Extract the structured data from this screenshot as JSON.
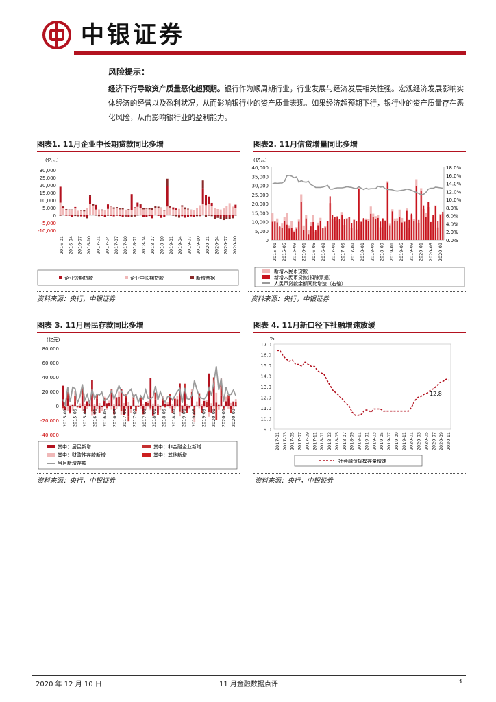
{
  "header": {
    "brand": "中银证券"
  },
  "risk": {
    "title": "风险提示：",
    "lead": "经济下行导致资产质量恶化超预期。",
    "body": "银行作为顺周期行业，行业发展与经济发展相关性强。宏观经济发展影响实体经济的经营以及盈利状况，从而影响银行业的资产质量表现。如果经济超预期下行，银行业的资产质量存在恶化风险，从而影响银行业的盈利能力。"
  },
  "figures": {
    "fig1": {
      "title": "图表1. 11月企业中长期贷款同比多增",
      "source": "资料来源：央行，中银证券"
    },
    "fig2": {
      "title": "图表2. 11月信贷增量同比多增",
      "source": "资料来源：央行，中银证券"
    },
    "fig3": {
      "title": "图表 3. 11月居民存款同比多增",
      "source": "资料来源：央行，中银证券"
    },
    "fig4": {
      "title": "图表 4. 11月新口径下社融增速放缓",
      "source": "资料来源：央行，中银证券"
    }
  },
  "chart_data": [
    {
      "id": "fig1",
      "type": "bar",
      "unit": "(亿元)",
      "ylim": [
        -10000,
        30000
      ],
      "yticks": [
        "30,000",
        "25,000",
        "20,000",
        "15,000",
        "10,000",
        "5,000",
        "0",
        "-5,000",
        "-10,000"
      ],
      "xticks": [
        "2016-01",
        "2016-04",
        "2016-07",
        "2016-10",
        "2017-01",
        "2017-04",
        "2017-07",
        "2017-10",
        "2018-01",
        "2018-04",
        "2018-07",
        "2018-10",
        "2019-01",
        "2019-04",
        "2019-07",
        "2019-10",
        "2020-01",
        "2020-04",
        "2020-07",
        "2020-10"
      ],
      "series": [
        {
          "name": "企业短期贷款",
          "color": "#b3121f"
        },
        {
          "name": "企业中长期贷款",
          "color": "#f0b8b8"
        },
        {
          "name": "新增票据",
          "color": "#8a2a2a"
        }
      ],
      "values_mid": [
        8400,
        5000,
        3700,
        3200,
        3300,
        4500,
        3000,
        3000,
        2600,
        4800,
        7500,
        6400,
        3800,
        3500,
        3100,
        3300,
        4200,
        5800,
        4300,
        4600,
        3900,
        3900,
        3700,
        3500,
        3600,
        4700,
        5600,
        5000,
        3900,
        4300,
        3900,
        3600,
        4800,
        4900,
        4600,
        3000,
        5800,
        4600,
        3900,
        3400,
        4200,
        5700,
        4000,
        3900,
        3600,
        3300,
        4800,
        6600,
        7700,
        6700,
        7600,
        5900,
        4700,
        4100,
        3800,
        4500,
        6000,
        8000,
        5700,
        4800
      ],
      "values_short": [
        10500,
        500,
        -300,
        -300,
        -1200,
        1000,
        -300,
        -700,
        -800,
        -1000,
        5200,
        100,
        3100,
        200,
        -400,
        -1000,
        3000,
        -400,
        -700,
        -300,
        -500,
        -1200,
        -300,
        -1100,
        10400,
        600,
        2800,
        2000,
        -1000,
        -1200,
        -500,
        -2000,
        200,
        -400,
        -1700,
        -1100,
        13300,
        700,
        1300,
        1100,
        -400,
        -600,
        -1600,
        -900,
        -700,
        -1000,
        100,
        -300,
        10200,
        6900,
        4800,
        2300,
        -1200,
        -500,
        -1000,
        -700,
        -1200,
        -1100,
        -1000,
        2200
      ],
      "values_bill": [
        -300,
        700,
        400,
        600,
        500,
        -500,
        -400,
        300,
        700,
        -1000,
        600,
        1100,
        -200,
        -600,
        700,
        -100,
        -300,
        400,
        900,
        800,
        600,
        700,
        -500,
        500,
        -1200,
        -800,
        -200,
        500,
        700,
        600,
        1000,
        1300,
        900,
        800,
        500,
        300,
        5100,
        1000,
        -300,
        -700,
        -1200,
        900,
        1200,
        400,
        100,
        -100,
        -600,
        -300,
        5200,
        -1200,
        -300,
        -600,
        -1100,
        -1200,
        -1600,
        -2500,
        -1200,
        -1400,
        -1000,
        -200
      ]
    },
    {
      "id": "fig2",
      "type": "bar+line",
      "unit": "(亿元)",
      "ylim": [
        0,
        40000
      ],
      "y2lim": [
        0,
        18
      ],
      "yticks": [
        "40,000",
        "35,000",
        "30,000",
        "25,000",
        "20,000",
        "15,000",
        "10,000",
        "5,000",
        "0"
      ],
      "y2ticks": [
        "18.0%",
        "16.0%",
        "14.0%",
        "12.0%",
        "10.0%",
        "8.0%",
        "6.0%",
        "4.0%",
        "2.0%",
        "0.0%"
      ],
      "xticks": [
        "2015-01",
        "2015-05",
        "2015-09",
        "2016-01",
        "2016-05",
        "2016-09",
        "2017-01",
        "2017-05",
        "2017-09",
        "2018-01",
        "2018-05",
        "2018-09",
        "2019-01",
        "2019-05",
        "2019-09",
        "2020-01",
        "2020-05",
        "2020-09"
      ],
      "series": [
        {
          "name": "新增人民币贷款",
          "color": "#f0b8b8"
        },
        {
          "name": "新增人民币贷款(扣除票据)",
          "color": "#c8141e"
        },
        {
          "name": "人民币贷款余额同比增速（右轴）",
          "color": "#999999"
        }
      ],
      "loans": [
        14700,
        10200,
        11800,
        7100,
        9000,
        12800,
        14800,
        8100,
        10500,
        5100,
        7100,
        11200,
        25100,
        8000,
        13700,
        5600,
        9800,
        13800,
        4600,
        9500,
        12200,
        6500,
        7900,
        10400,
        20300,
        11700,
        10200,
        11000,
        11100,
        15400,
        8300,
        12000,
        12700,
        6600,
        11200,
        5800,
        29000,
        8400,
        11200,
        11800,
        11500,
        18400,
        14500,
        13100,
        13800,
        6970,
        11600,
        10800,
        32300,
        8900,
        16900,
        11800,
        11900,
        16700,
        12100,
        10600,
        17300,
        6600,
        13900,
        11400,
        33400,
        9057,
        28500,
        17000,
        14800,
        18100,
        9927,
        12800,
        19000,
        6898,
        14300,
        14300
      ],
      "loans_ex": [
        10000,
        10000,
        9600,
        7500,
        6600,
        10400,
        8400,
        6300,
        6800,
        4200,
        6200,
        10000,
        21000,
        5400,
        11800,
        2900,
        7500,
        9800,
        5400,
        8100,
        10200,
        6400,
        7000,
        10200,
        24000,
        13600,
        12700,
        13000,
        11600,
        13900,
        11300,
        11500,
        12700,
        9100,
        11000,
        10500,
        28000,
        10000,
        12000,
        11000,
        10200,
        14400,
        12500,
        11700,
        12100,
        10100,
        11900,
        10600,
        31500,
        8100,
        15700,
        10500,
        10400,
        12600,
        9600,
        9900,
        16000,
        11000,
        14500,
        10300,
        29600,
        11000,
        26800,
        19000,
        12500,
        21000,
        9800,
        13700,
        18800,
        10200,
        13700,
        15500
      ],
      "growth": [
        13.9,
        14.1,
        14.0,
        14.1,
        14.1,
        14.5,
        15.9,
        16.0,
        15.8,
        15.4,
        15.6,
        14.3,
        14.7,
        14.4,
        14.3,
        14.5,
        13.7,
        13.4,
        13.0,
        13.0,
        13.0,
        13.1,
        13.3,
        13.5,
        12.6,
        12.6,
        12.8,
        12.9,
        12.9,
        12.9,
        13.0,
        13.2,
        13.1,
        13.0,
        12.8,
        12.7,
        13.2,
        12.8,
        12.5,
        12.8,
        12.6,
        12.7,
        12.7,
        12.7,
        13.3,
        13.1,
        13.2,
        12.7,
        12.5,
        12.5,
        12.4,
        12.2,
        12.1,
        12.2,
        12.3,
        12.4,
        12.6,
        12.5,
        12.3,
        12.0,
        11.8,
        11.5,
        11.2,
        11.3,
        11.8,
        12.6,
        12.8,
        12.8,
        13.1,
        13.0,
        12.9,
        12.8
      ]
    },
    {
      "id": "fig3",
      "type": "bar+line",
      "unit": "(亿元)",
      "ylim": [
        -40000,
        80000
      ],
      "yticks": [
        "80,000",
        "60,000",
        "40,000",
        "20,000",
        "0",
        "-20,000",
        "-40,000"
      ],
      "xticks": [
        "2015-01",
        "2015-05",
        "2015-09",
        "2016-01",
        "2016-05",
        "2016-09",
        "2017-01",
        "2017-05",
        "2017-09",
        "2018-01",
        "2018-05",
        "2018-09",
        "2019-01",
        "2019-05",
        "2019-09",
        "2020-01",
        "2020-05",
        "2020-09"
      ],
      "series": [
        {
          "name": "其中：居民新增",
          "color": "#b3121f"
        },
        {
          "name": "其中：非金融企业新增",
          "color": "#c53030"
        },
        {
          "name": "其中：财政性存款新增",
          "color": "#f0b8b8"
        },
        {
          "name": "其中：其他新增",
          "color": "#cc1f1f"
        },
        {
          "name": "当月新增存款",
          "color": "#9b9b9b"
        }
      ],
      "total": [
        9000,
        1000,
        26000,
        5000,
        25700,
        24000,
        4200,
        13000,
        30000,
        8000,
        15700,
        3000,
        22900,
        10000,
        16600,
        15000,
        19000,
        7400,
        9000,
        14000,
        21000,
        9500,
        18200,
        28000,
        20300,
        15000,
        14000,
        19300,
        23000,
        12000,
        16500,
        4800,
        14000,
        9500,
        22000,
        10400,
        10000,
        12000,
        27500,
        8000,
        19500,
        11000,
        5000,
        13000,
        13000,
        8000,
        14000,
        20000,
        24000,
        4100,
        25000,
        10000,
        9000,
        15000,
        35000,
        23000,
        13000,
        10600,
        9500,
        13800,
        25000,
        14500,
        33000,
        55000,
        22000,
        38000,
        6000,
        26000,
        15000,
        16000,
        22000,
        14000
      ],
      "household": [
        28000,
        -6000,
        10000,
        -9000,
        1200,
        5700,
        -400,
        -2700,
        14000,
        -8000,
        6200,
        4700,
        36000,
        -12000,
        9600,
        -4800,
        -1900,
        8300,
        3400,
        3800,
        16000,
        -8500,
        11900,
        2800,
        23000,
        -13000,
        11000,
        -14400,
        -4600,
        8800,
        -1000,
        -800,
        9200,
        -8500,
        5600,
        300,
        39000,
        -14000,
        8800,
        -10000,
        -1000,
        7000,
        3000,
        1600,
        12000,
        -7700,
        10000,
        2300,
        31000,
        -10000,
        22000,
        -6600,
        -2600,
        14000,
        -1300,
        300,
        13000,
        -5800,
        6900,
        -2000,
        45000,
        -9400,
        28000,
        4500,
        1200,
        15000,
        -2900,
        6300,
        10000,
        -4900,
        6000,
        1000
      ]
    },
    {
      "id": "fig4",
      "type": "line",
      "unit": "%",
      "ylim": [
        9.0,
        17.0
      ],
      "yticks": [
        "17.0",
        "16.0",
        "15.0",
        "14.0",
        "13.0",
        "12.0",
        "11.0",
        "10.0",
        "9.0"
      ],
      "xticks": [
        "2017-01",
        "2017-03",
        "2017-05",
        "2017-07",
        "2017-09",
        "2017-11",
        "2018-01",
        "2018-03",
        "2018-05",
        "2018-07",
        "2018-09",
        "2018-11",
        "2019-01",
        "2019-03",
        "2019-05",
        "2019-07",
        "2019-09",
        "2019-11",
        "2020-01",
        "2020-03",
        "2020-05",
        "2020-07",
        "2020-09",
        "2020-11"
      ],
      "series": [
        {
          "name": "社会融资规模存量增速",
          "color": "#b3121f"
        }
      ],
      "values": [
        16.4,
        16.4,
        15.9,
        15.6,
        15.4,
        15.5,
        15.1,
        15.1,
        14.9,
        15.3,
        15.1,
        14.9,
        14.9,
        14.5,
        14.3,
        14.2,
        13.6,
        13.1,
        12.6,
        12.4,
        12.1,
        11.8,
        11.4,
        11.2,
        10.6,
        10.3,
        10.3,
        10.4,
        10.8,
        10.8,
        10.6,
        10.9,
        10.9,
        10.9,
        10.7,
        10.7,
        10.7,
        10.7,
        10.7,
        10.7,
        10.7,
        10.7,
        10.7,
        11.1,
        11.7,
        12.0,
        12.1,
        12.3,
        12.4,
        12.7,
        12.8,
        13.1,
        13.4,
        13.5,
        13.7,
        13.6
      ],
      "annotation": "12.8"
    }
  ],
  "footer": {
    "date": "2020 年 12 月 10 日",
    "doc_title": "11 月金融数据点评",
    "page": "3"
  }
}
